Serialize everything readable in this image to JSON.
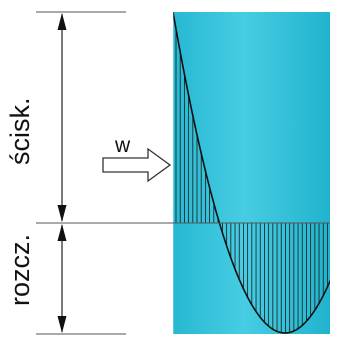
{
  "labels": {
    "compression": "ścisk.",
    "tension": "rozcz.",
    "load": "w"
  },
  "colors": {
    "pile_fill": "#2ec4dc",
    "pile_light": "#5fd6e8",
    "line": "#1a1a1a",
    "arrow_fill": "#ffffff"
  }
}
